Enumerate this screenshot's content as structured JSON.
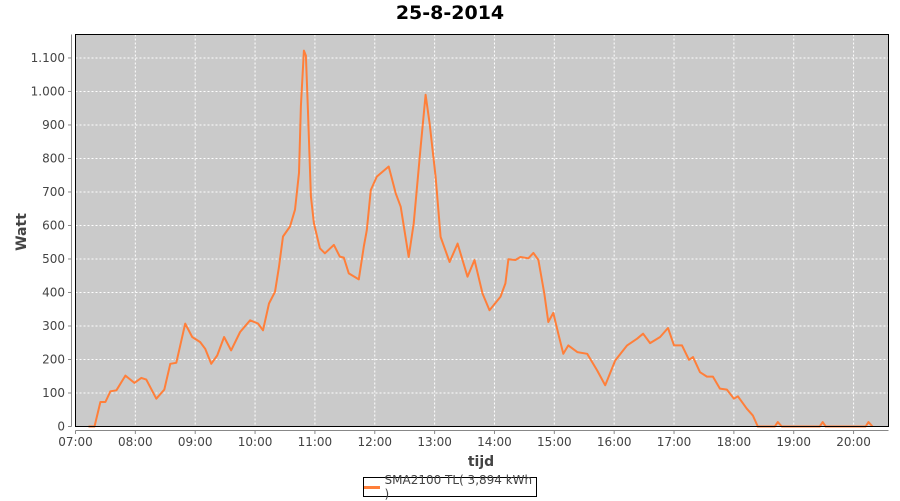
{
  "chart_data": {
    "type": "line",
    "title": "25-8-2014",
    "xlabel": "tijd",
    "ylabel": "Watt",
    "xlim": [
      "07:00",
      "20:35"
    ],
    "ylim": [
      0,
      1170
    ],
    "x_ticks": [
      "07:00",
      "08:00",
      "09:00",
      "10:00",
      "11:00",
      "12:00",
      "13:00",
      "14:00",
      "15:00",
      "16:00",
      "17:00",
      "18:00",
      "19:00",
      "20:00"
    ],
    "y_ticks": [
      0,
      100,
      200,
      300,
      400,
      500,
      600,
      700,
      800,
      900,
      1000,
      1100
    ],
    "y_tick_labels": [
      "0",
      "100",
      "200",
      "300",
      "400",
      "500",
      "600",
      "700",
      "800",
      "900",
      "1.000",
      "1.100"
    ],
    "grid": true,
    "legend_position": "bottom",
    "background": "#cacaca",
    "series": [
      {
        "name": "SMA2100 TL( 3,894 kWh )",
        "color": "#ff7f3a",
        "x": [
          "07:13",
          "07:19",
          "07:25",
          "07:30",
          "07:35",
          "07:41",
          "07:50",
          "07:59",
          "08:06",
          "08:11",
          "08:21",
          "08:29",
          "08:35",
          "08:41",
          "08:50",
          "08:57",
          "09:05",
          "09:10",
          "09:16",
          "09:22",
          "09:29",
          "09:36",
          "09:45",
          "09:55",
          "10:03",
          "10:08",
          "10:14",
          "10:20",
          "10:24",
          "10:28",
          "10:35",
          "10:40",
          "10:44",
          "10:46",
          "10:49",
          "10:51",
          "10:53",
          "10:56",
          "10:59",
          "11:05",
          "11:10",
          "11:19",
          "11:25",
          "11:29",
          "11:34",
          "11:44",
          "11:49",
          "11:52",
          "11:56",
          "12:02",
          "12:14",
          "12:21",
          "12:26",
          "12:34",
          "12:39",
          "12:46",
          "12:51",
          "12:55",
          "13:01",
          "13:06",
          "13:15",
          "13:23",
          "13:33",
          "13:40",
          "13:48",
          "13:55",
          "14:06",
          "14:11",
          "14:14",
          "14:21",
          "14:26",
          "14:34",
          "14:39",
          "14:44",
          "14:50",
          "14:54",
          "14:59",
          "15:04",
          "15:09",
          "15:14",
          "15:23",
          "15:33",
          "15:43",
          "15:51",
          "16:01",
          "16:13",
          "16:23",
          "16:29",
          "16:36",
          "16:46",
          "16:54",
          "17:00",
          "17:08",
          "17:15",
          "17:19",
          "17:26",
          "17:33",
          "17:39",
          "17:46",
          "17:53",
          "18:00",
          "18:04",
          "18:13",
          "18:19",
          "18:24",
          "18:41",
          "18:44",
          "18:48",
          "19:26",
          "19:29",
          "19:32",
          "20:12",
          "20:15",
          "20:19"
        ],
        "y": [
          0,
          0,
          73,
          73,
          105,
          108,
          152,
          130,
          145,
          140,
          83,
          110,
          187,
          190,
          307,
          267,
          252,
          232,
          187,
          212,
          267,
          227,
          282,
          317,
          307,
          287,
          367,
          402,
          477,
          567,
          597,
          647,
          757,
          957,
          1122,
          1107,
          947,
          687,
          607,
          532,
          517,
          542,
          507,
          504,
          457,
          439,
          537,
          586,
          706,
          746,
          776,
          696,
          656,
          506,
          606,
          836,
          990,
          905,
          746,
          566,
          491,
          546,
          447,
          497,
          397,
          347,
          387,
          427,
          499,
          497,
          506,
          502,
          518,
          497,
          397,
          312,
          339,
          277,
          217,
          242,
          222,
          217,
          167,
          123,
          197,
          242,
          262,
          277,
          249,
          267,
          294,
          242,
          242,
          199,
          207,
          162,
          149,
          149,
          113,
          110,
          83,
          90,
          53,
          33,
          0,
          0,
          13,
          0,
          0,
          13,
          0,
          0,
          13,
          0
        ]
      }
    ]
  }
}
